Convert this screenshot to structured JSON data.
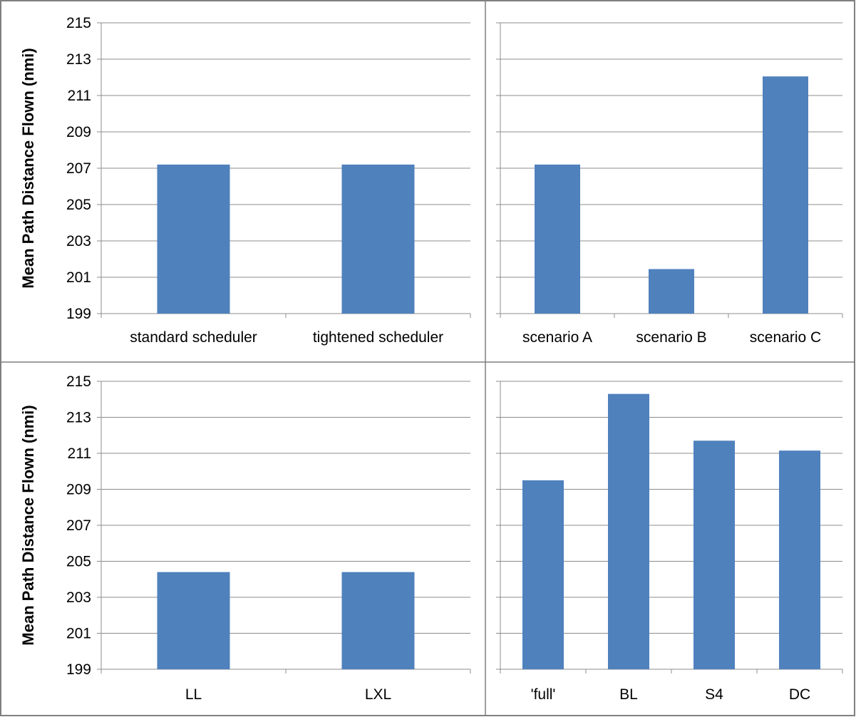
{
  "colors": {
    "bar": "#4f81bd"
  },
  "chart_data": [
    {
      "type": "bar",
      "categories": [
        "standard scheduler",
        "tightened scheduler"
      ],
      "values": [
        207.2,
        207.2
      ],
      "title": "",
      "xlabel": "",
      "ylabel": "Mean Path Distance Flown (nmi)",
      "ylim": [
        199,
        215
      ],
      "yticks": [
        "199",
        "201",
        "203",
        "205",
        "207",
        "209",
        "211",
        "213",
        "215"
      ],
      "grid": true,
      "legend": "none"
    },
    {
      "type": "bar",
      "categories": [
        "scenario A",
        "scenario B",
        "scenario C"
      ],
      "values": [
        207.2,
        201.45,
        212.05
      ],
      "title": "",
      "xlabel": "",
      "ylabel": "",
      "ylim": [
        199,
        215
      ],
      "yticks": [],
      "grid": true,
      "legend": "none"
    },
    {
      "type": "bar",
      "categories": [
        "LL",
        "LXL"
      ],
      "values": [
        204.4,
        204.4
      ],
      "title": "",
      "xlabel": "",
      "ylabel": "Mean Path Distance Flown (nmi)",
      "ylim": [
        199,
        215
      ],
      "yticks": [
        "199",
        "201",
        "203",
        "205",
        "207",
        "209",
        "211",
        "213",
        "215"
      ],
      "grid": true,
      "legend": "none"
    },
    {
      "type": "bar",
      "categories": [
        "'full'",
        "BL",
        "S4",
        "DC"
      ],
      "values": [
        209.5,
        214.3,
        211.7,
        211.15
      ],
      "title": "",
      "xlabel": "",
      "ylabel": "",
      "ylim": [
        199,
        215
      ],
      "yticks": [],
      "grid": true,
      "legend": "none"
    }
  ]
}
